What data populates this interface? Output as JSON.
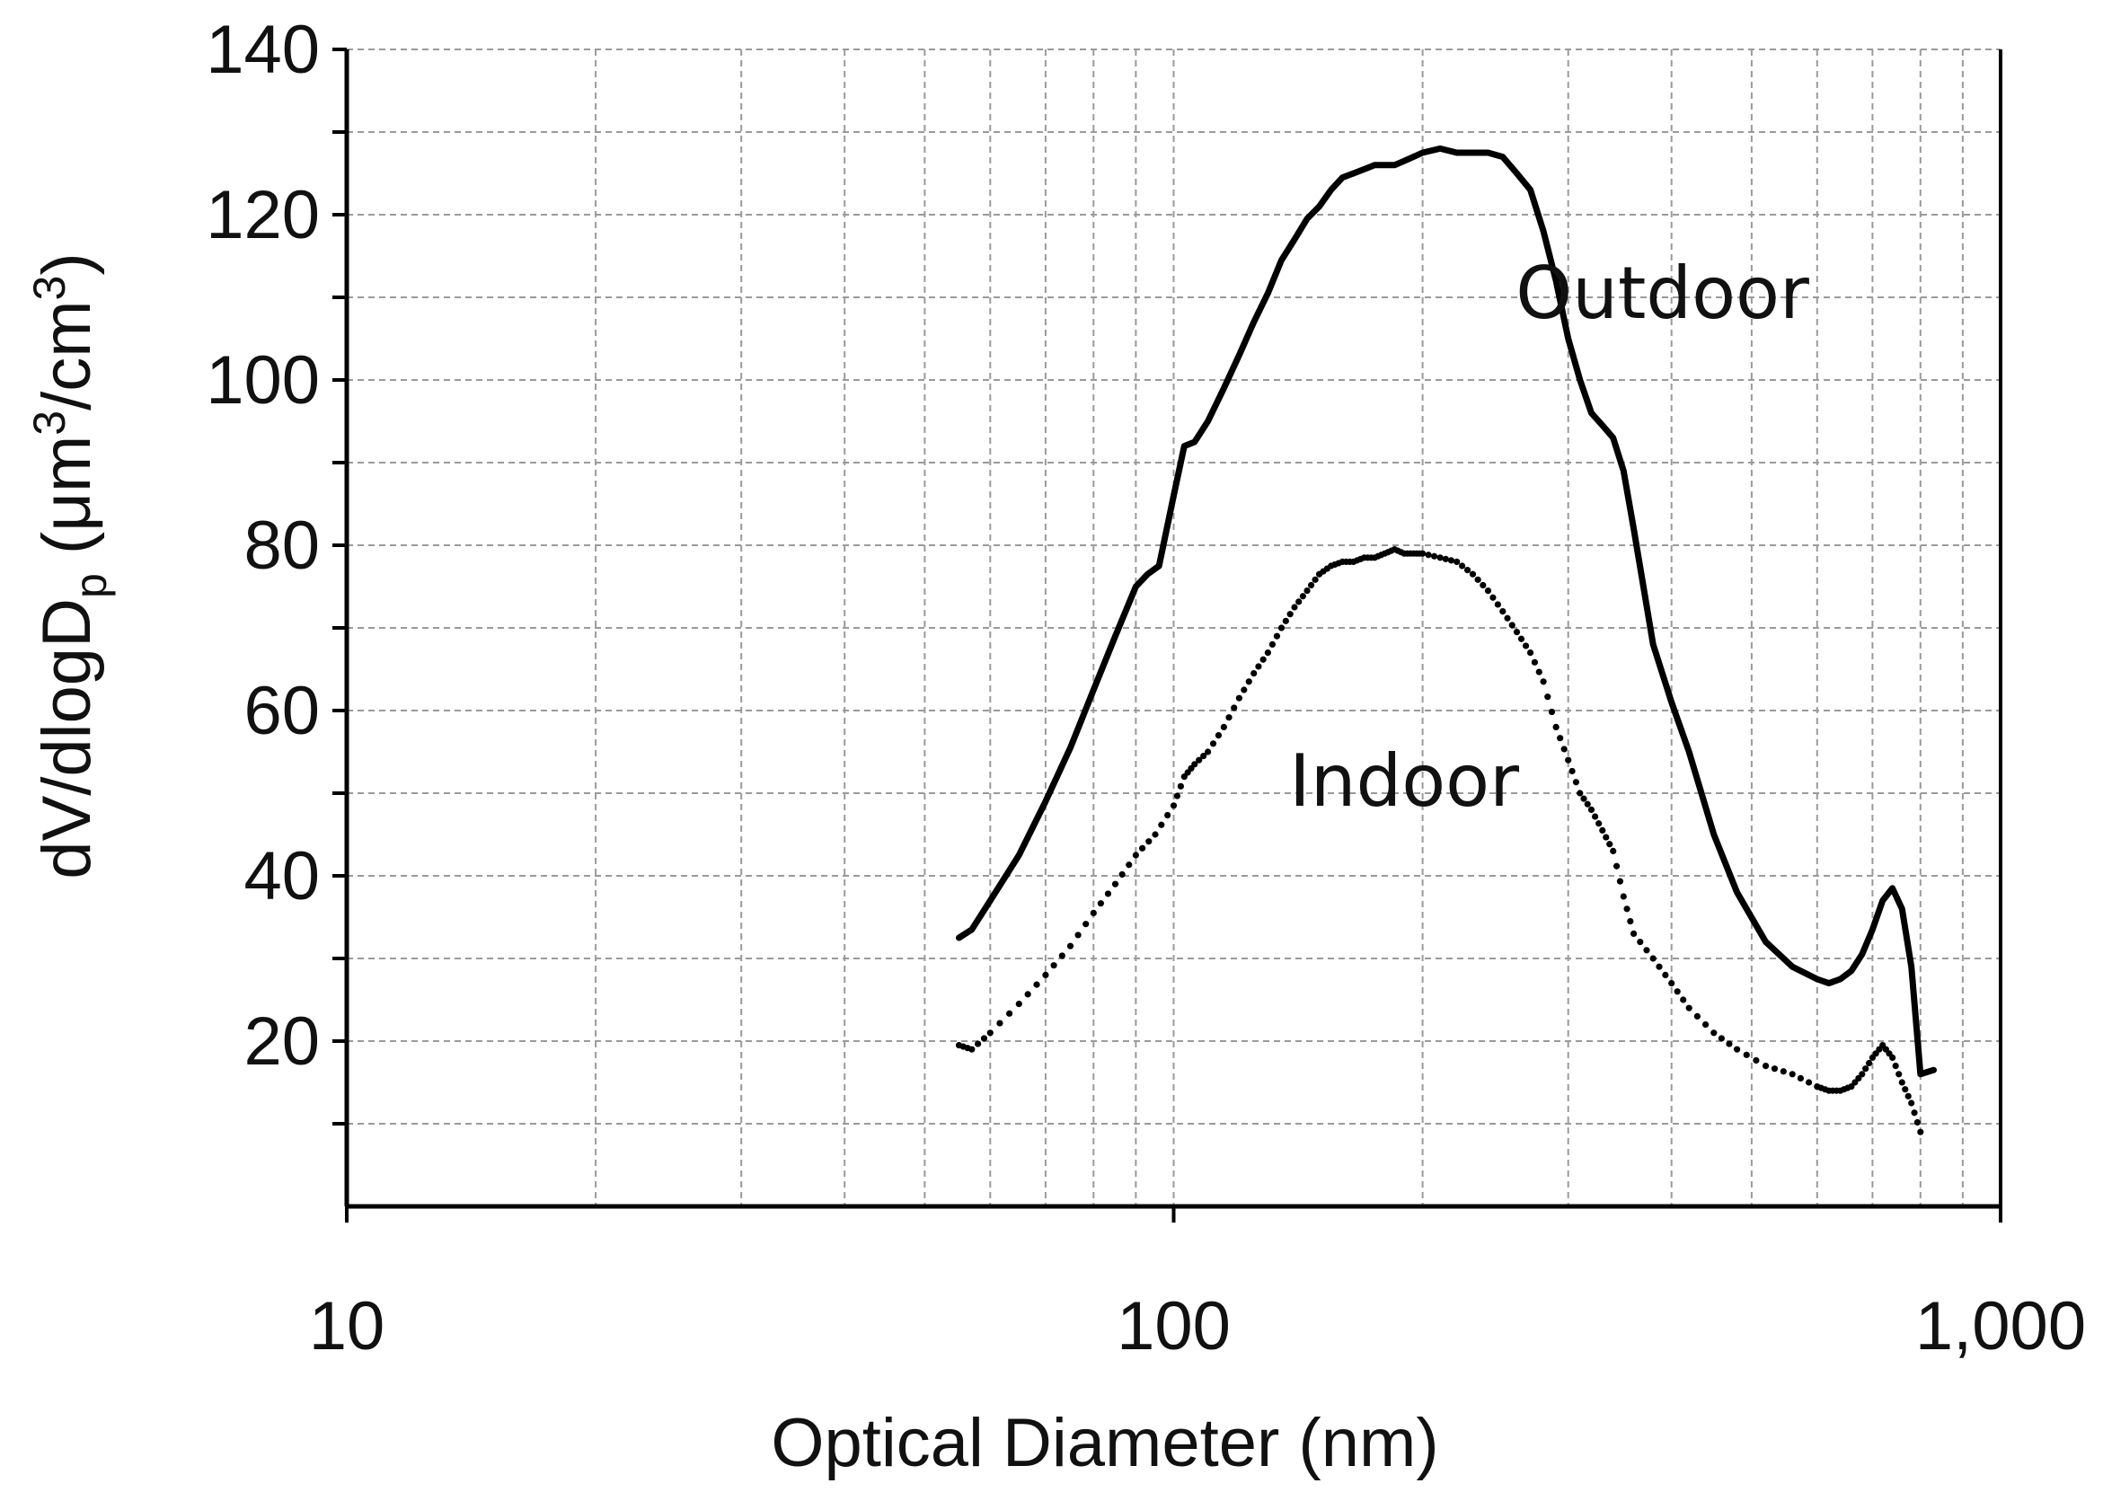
{
  "chart_data": {
    "type": "line",
    "x_scale": "log",
    "xlim": [
      10,
      1000
    ],
    "ylim": [
      0,
      140
    ],
    "x_ticks": [
      10,
      100,
      1000
    ],
    "x_tick_labels": [
      "10",
      "100",
      "1,000"
    ],
    "y_ticks": [
      20,
      40,
      60,
      80,
      100,
      120,
      140
    ],
    "y_tick_labels": [
      "20",
      "40",
      "60",
      "80",
      "100",
      "120",
      "140"
    ],
    "xlabel": "Optical Diameter (nm)",
    "ylabel": {
      "main": "dV/dlogD",
      "sub": "p",
      "unit_open": " (μm",
      "sup1": "3",
      "unit_mid": "/cm",
      "sup2": "3",
      "unit_close": ")"
    },
    "grid": true,
    "series": [
      {
        "name": "Outdoor",
        "style": "solid",
        "color": "#000000",
        "x": [
          55,
          57,
          60,
          65,
          70,
          75,
          80,
          85,
          90,
          93,
          96,
          100,
          103,
          106,
          110,
          115,
          120,
          125,
          130,
          135,
          140,
          145,
          150,
          155,
          160,
          165,
          170,
          175,
          180,
          185,
          190,
          195,
          200,
          210,
          220,
          230,
          240,
          250,
          260,
          270,
          280,
          290,
          300,
          310,
          320,
          330,
          340,
          350,
          360,
          380,
          400,
          420,
          450,
          480,
          520,
          560,
          600,
          620,
          640,
          660,
          680,
          700,
          720,
          740,
          760,
          780,
          800,
          830
        ],
        "y": [
          32.5,
          33.5,
          37,
          42.5,
          49,
          55.5,
          62.5,
          69,
          75,
          76.5,
          77.5,
          86,
          92,
          92.5,
          95,
          99,
          103,
          107,
          110.5,
          114.5,
          117,
          119.5,
          121,
          123,
          124.5,
          125,
          125.5,
          126,
          126,
          126,
          126.5,
          127,
          127.5,
          128,
          127.5,
          127.5,
          127.5,
          127,
          125,
          123,
          118,
          112,
          105,
          100,
          96,
          94.5,
          93,
          89,
          82,
          68,
          61,
          55,
          45,
          38,
          32,
          29,
          27.5,
          27,
          27.5,
          28.5,
          30.5,
          33.5,
          37,
          38.5,
          36,
          29,
          16,
          16.5
        ]
      },
      {
        "name": "Indoor",
        "style": "dotted",
        "color": "#000000",
        "x": [
          55,
          57,
          60,
          65,
          70,
          75,
          80,
          85,
          90,
          95,
          100,
          103,
          106,
          110,
          115,
          120,
          125,
          130,
          135,
          140,
          145,
          150,
          155,
          160,
          165,
          170,
          175,
          180,
          185,
          190,
          195,
          200,
          210,
          220,
          230,
          240,
          250,
          260,
          270,
          280,
          290,
          300,
          310,
          320,
          330,
          340,
          350,
          360,
          380,
          400,
          420,
          450,
          480,
          520,
          560,
          600,
          620,
          640,
          660,
          680,
          700,
          720,
          740,
          760,
          780,
          800
        ],
        "y": [
          19.5,
          19,
          21,
          24.5,
          28,
          31.5,
          35.5,
          39,
          42.5,
          45,
          48.5,
          52,
          53.5,
          55,
          58,
          61.5,
          64.5,
          67,
          70,
          72.5,
          74.5,
          76.5,
          77.5,
          78,
          78,
          78.5,
          78.5,
          79,
          79.5,
          79,
          79,
          79,
          78.5,
          78,
          76.5,
          74.5,
          72,
          69.5,
          67,
          63.5,
          58,
          54,
          50,
          48,
          45.5,
          43,
          37.5,
          33,
          30,
          27,
          24,
          21,
          19,
          17,
          16,
          14.5,
          14,
          14,
          14.5,
          16,
          18,
          19.5,
          18,
          15,
          12.5,
          9
        ]
      }
    ],
    "annotations": [
      {
        "text": "Outdoor",
        "x": 390,
        "y": 107.5
      },
      {
        "text": "Indoor",
        "x": 190,
        "y": 48.5
      }
    ]
  }
}
